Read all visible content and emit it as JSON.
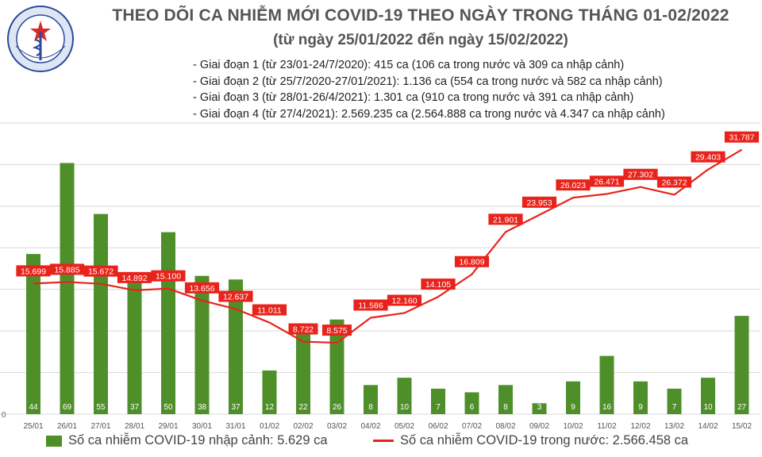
{
  "header": {
    "logo_text": "BỘ Y TẾ · MINISTRY OF HEALTH",
    "title": "THEO DÕI CA NHIỄM MỚI COVID-19 THEO NGÀY TRONG THÁNG 01-02/2022",
    "subtitle": "(từ ngày 25/01/2022 đến ngày 15/02/2022)",
    "notes": [
      "- Giai đoạn 1 (từ 23/01-24/7/2020): 415 ca (106 ca trong nước và 309 ca nhập cảnh)",
      "- Giai đoạn 2 (từ 25/7/2020-27/01/2021): 1.136 ca (554 ca trong nước và 582 ca nhập cảnh)",
      "- Giai đoạn 3 (từ 28/01-26/4/2021): 1.301 ca (910 ca trong nước và 391 ca nhập cảnh)",
      "- Giai đoạn 4 (từ 27/4/2021): 2.569.235 ca (2.564.888 ca trong nước và 4.347 ca nhập cảnh)"
    ]
  },
  "colors": {
    "bar": "#4f8f2a",
    "line": "#e8231b",
    "grid": "#d9d9d9",
    "text": "#444444"
  },
  "chart_data": {
    "type": "bar+line",
    "categories": [
      "25/01",
      "26/01",
      "27/01",
      "28/01",
      "29/01",
      "30/01",
      "31/01",
      "01/02",
      "02/02",
      "03/02",
      "04/02",
      "05/02",
      "06/02",
      "07/02",
      "08/02",
      "09/02",
      "10/02",
      "11/02",
      "12/02",
      "13/02",
      "14/02",
      "15/02"
    ],
    "series": [
      {
        "name": "Số ca nhiễm COVID-19 nhập cảnh: 5.629 ca",
        "type": "bar",
        "axis": "right-hidden",
        "values": [
          44,
          69,
          55,
          37,
          50,
          38,
          37,
          12,
          22,
          26,
          8,
          10,
          7,
          6,
          8,
          3,
          9,
          16,
          9,
          7,
          10,
          27
        ],
        "labels": [
          "44",
          "69",
          "55",
          "37",
          "50",
          "38",
          "37",
          "12",
          "22",
          "26",
          "8",
          "10",
          "7",
          "6",
          "8",
          "3",
          "9",
          "16",
          "9",
          "7",
          "10",
          "27"
        ],
        "ylim": [
          0,
          80
        ]
      },
      {
        "name": "Số ca nhiễm COVID-19 trong nước: 2.566.458 ca",
        "type": "line",
        "axis": "left",
        "values": [
          15699,
          15885,
          15672,
          14892,
          15100,
          13656,
          12637,
          11011,
          8722,
          8575,
          11586,
          12160,
          14105,
          16809,
          21901,
          23953,
          26023,
          26471,
          27302,
          26372,
          29403,
          31787
        ],
        "labels": [
          "15.699",
          "15.885",
          "15.672",
          "14.892",
          "15.100",
          "13.656",
          "12.637",
          "11.011",
          "8.722",
          "8.575",
          "11.586",
          "12.160",
          "14.105",
          "16.809",
          "21.901",
          "23.953",
          "26.023",
          "26.471",
          "27.302",
          "26.372",
          "29.403",
          "31.787"
        ],
        "ylim": [
          0,
          35000
        ]
      }
    ],
    "y_gridlines": [
      0,
      5000,
      10000,
      15000,
      20000,
      25000,
      30000,
      35000
    ],
    "y_tick_labels_visible": "0",
    "grid": true,
    "legend": "bottom"
  }
}
